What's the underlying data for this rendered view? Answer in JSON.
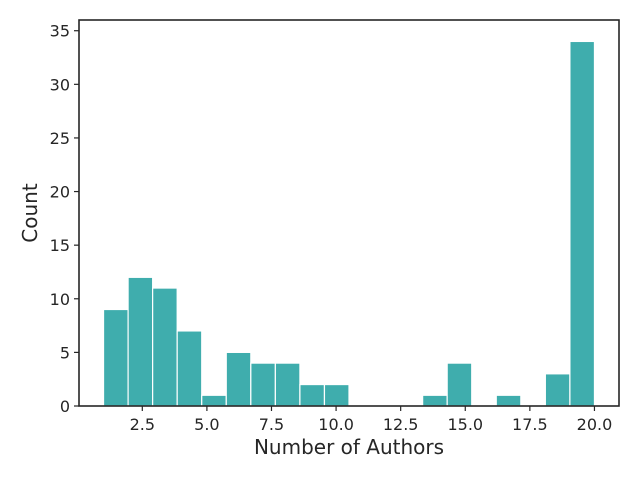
{
  "chart_data": {
    "type": "bar",
    "title": "",
    "xlabel": "Number of Authors",
    "ylabel": "Count",
    "xlim": [
      0.05,
      20.95
    ],
    "ylim": [
      0,
      36
    ],
    "bar_color": "#3fadad",
    "grid": false,
    "bins": [
      {
        "start": 1.0,
        "end": 1.95,
        "count": 9
      },
      {
        "start": 1.95,
        "end": 2.9,
        "count": 12
      },
      {
        "start": 2.9,
        "end": 3.85,
        "count": 11
      },
      {
        "start": 3.85,
        "end": 4.8,
        "count": 7
      },
      {
        "start": 4.8,
        "end": 5.75,
        "count": 1
      },
      {
        "start": 5.75,
        "end": 6.7,
        "count": 5
      },
      {
        "start": 6.7,
        "end": 7.65,
        "count": 4
      },
      {
        "start": 7.65,
        "end": 8.6,
        "count": 4
      },
      {
        "start": 8.6,
        "end": 9.55,
        "count": 2
      },
      {
        "start": 9.55,
        "end": 10.5,
        "count": 2
      },
      {
        "start": 13.35,
        "end": 14.3,
        "count": 1
      },
      {
        "start": 14.3,
        "end": 15.25,
        "count": 4
      },
      {
        "start": 16.2,
        "end": 17.15,
        "count": 1
      },
      {
        "start": 18.1,
        "end": 19.05,
        "count": 3
      },
      {
        "start": 19.05,
        "end": 20.0,
        "count": 34
      }
    ],
    "x_ticks": [
      "2.5",
      "5.0",
      "7.5",
      "10.0",
      "12.5",
      "15.0",
      "17.5",
      "20.0"
    ],
    "x_tick_values": [
      2.5,
      5.0,
      7.5,
      10.0,
      12.5,
      15.0,
      17.5,
      20.0
    ],
    "y_ticks": [
      "0",
      "5",
      "10",
      "15",
      "20",
      "25",
      "30",
      "35"
    ],
    "y_tick_values": [
      0,
      5,
      10,
      15,
      20,
      25,
      30,
      35
    ]
  }
}
